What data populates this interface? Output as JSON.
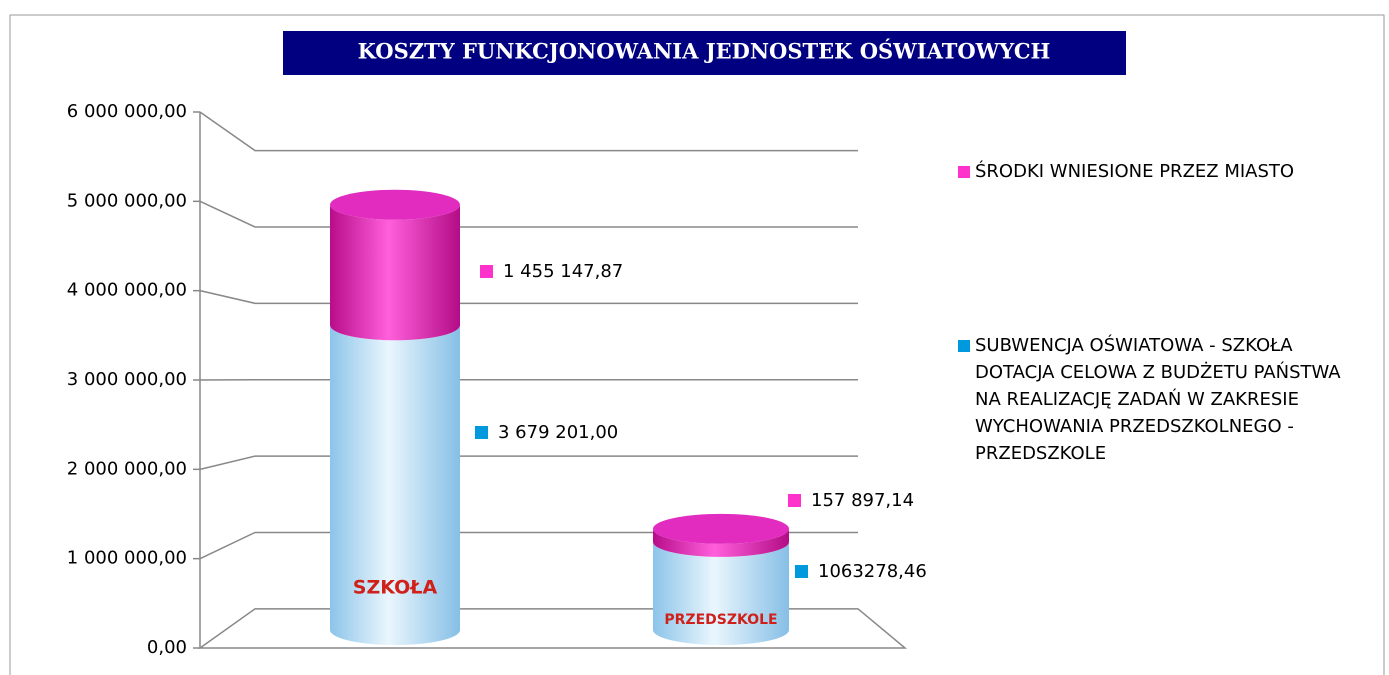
{
  "chart_data": {
    "type": "stacked-cylinder",
    "title": "KOSZTY FUNKCJONOWANIA JEDNOSTEK OŚWIATOWYCH",
    "categories": [
      "SZKOŁA",
      "PRZEDSZKOLE"
    ],
    "series": [
      {
        "name": "ŚRODKI WNIESIONE PRZEZ MIASTO",
        "color": "#ff33cc",
        "values": [
          1455147.87,
          157897.14
        ],
        "value_labels": [
          "1 455 147,87",
          "157 897,14"
        ]
      },
      {
        "name": "SUBWENCJA OŚWIATOWA - SZKOŁA DOTACJA CELOWA Z BUDŻETU PAŃSTWA NA REALIZACJĘ ZADAŃ W ZAKRESIE WYCHOWANIA PRZEDSZKOLNEGO - PRZEDSZKOLE",
        "color": "#0099dd",
        "values": [
          3679201.0,
          1063278.46
        ],
        "value_labels": [
          "3 679 201,00",
          "1063278,46"
        ]
      }
    ],
    "ylim": [
      0,
      6000000
    ],
    "yticks": [
      {
        "value": 0,
        "label": "0,00"
      },
      {
        "value": 1000000,
        "label": "1 000 000,00"
      },
      {
        "value": 2000000,
        "label": "2 000 000,00"
      },
      {
        "value": 3000000,
        "label": "3 000 000,00"
      },
      {
        "value": 4000000,
        "label": "4 000 000,00"
      },
      {
        "value": 5000000,
        "label": "5 000 000,00"
      },
      {
        "value": 6000000,
        "label": "6 000 000,00"
      }
    ],
    "grid": true,
    "legend": "right"
  }
}
